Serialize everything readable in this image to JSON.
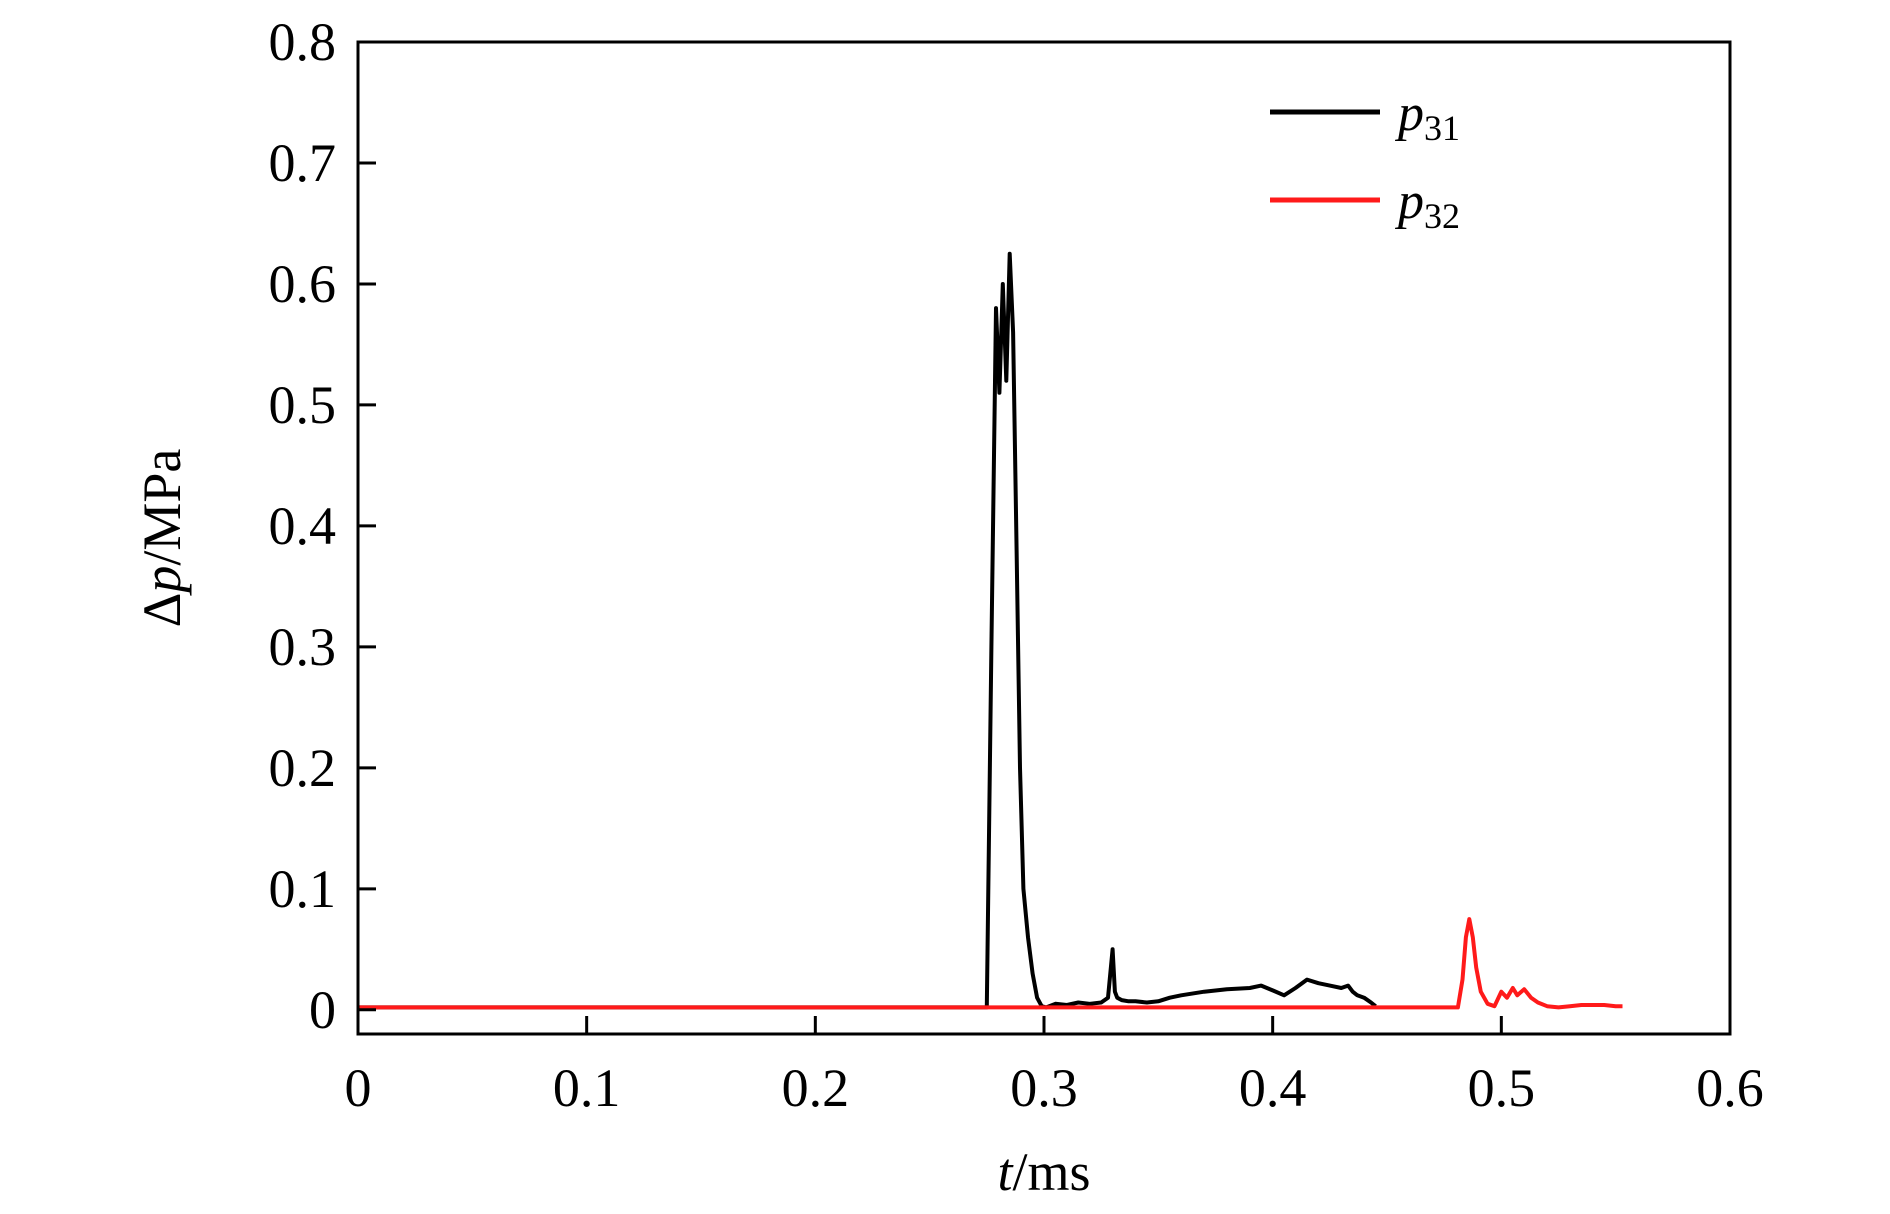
{
  "chart_data": {
    "type": "line",
    "title": "",
    "xlabel": {
      "var": "t",
      "unit": "/ms"
    },
    "ylabel": {
      "prefix": "Δ",
      "var": "p",
      "unit": "/MPa"
    },
    "xlim": [
      0,
      0.6
    ],
    "ylim": [
      -0.02,
      0.8
    ],
    "xticks": [
      "0",
      "0.1",
      "0.2",
      "0.3",
      "0.4",
      "0.5",
      "0.6"
    ],
    "yticks": [
      "0",
      "0.1",
      "0.2",
      "0.3",
      "0.4",
      "0.5",
      "0.6",
      "0.7",
      "0.8"
    ],
    "grid": false,
    "legend_position": "top-right",
    "series": [
      {
        "name": "p31",
        "name_base": "p",
        "name_sub": "31",
        "color": "#000000",
        "x": [
          0,
          0.275,
          0.277,
          0.279,
          0.2805,
          0.282,
          0.2835,
          0.285,
          0.2865,
          0.288,
          0.2895,
          0.291,
          0.293,
          0.295,
          0.297,
          0.299,
          0.301,
          0.305,
          0.31,
          0.315,
          0.32,
          0.325,
          0.328,
          0.33,
          0.331,
          0.332,
          0.334,
          0.337,
          0.34,
          0.345,
          0.35,
          0.355,
          0.36,
          0.37,
          0.38,
          0.39,
          0.395,
          0.4,
          0.405,
          0.41,
          0.415,
          0.42,
          0.425,
          0.43,
          0.433,
          0.435,
          0.437,
          0.44,
          0.443,
          0.445
        ],
        "y": [
          0.002,
          0.002,
          0.3,
          0.58,
          0.51,
          0.6,
          0.52,
          0.625,
          0.56,
          0.38,
          0.2,
          0.1,
          0.06,
          0.03,
          0.01,
          0.003,
          0.002,
          0.005,
          0.004,
          0.006,
          0.005,
          0.006,
          0.01,
          0.05,
          0.015,
          0.01,
          0.008,
          0.007,
          0.007,
          0.006,
          0.007,
          0.01,
          0.012,
          0.015,
          0.017,
          0.018,
          0.02,
          0.016,
          0.012,
          0.018,
          0.025,
          0.022,
          0.02,
          0.018,
          0.02,
          0.015,
          0.012,
          0.01,
          0.006,
          0.003
        ]
      },
      {
        "name": "p32",
        "name_base": "p",
        "name_sub": "32",
        "color": "#ff1a1a",
        "x": [
          0,
          0.481,
          0.483,
          0.4845,
          0.486,
          0.4875,
          0.489,
          0.491,
          0.494,
          0.497,
          0.5,
          0.5025,
          0.505,
          0.507,
          0.51,
          0.513,
          0.516,
          0.52,
          0.525,
          0.53,
          0.535,
          0.54,
          0.545,
          0.55,
          0.553
        ],
        "y": [
          0.002,
          0.002,
          0.025,
          0.06,
          0.075,
          0.06,
          0.035,
          0.015,
          0.005,
          0.003,
          0.015,
          0.01,
          0.018,
          0.012,
          0.017,
          0.01,
          0.006,
          0.003,
          0.002,
          0.003,
          0.004,
          0.004,
          0.004,
          0.003,
          0.003
        ]
      }
    ]
  }
}
